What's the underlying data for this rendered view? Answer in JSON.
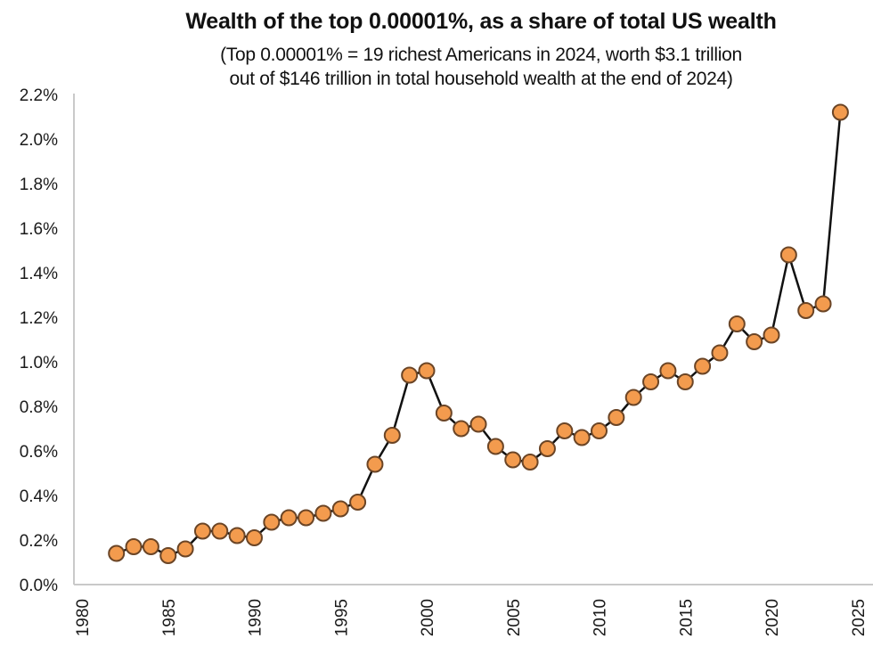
{
  "chart_data": {
    "type": "line",
    "title": "Wealth of the top 0.00001%, as a share of total US wealth",
    "subtitle": [
      "(Top 0.00001% = 19 richest Americans in 2024, worth $3.1 trillion",
      "out of $146 trillion in total household wealth at the end of 2024)"
    ],
    "xlabel": "",
    "ylabel": "",
    "xlim": [
      1980,
      2025
    ],
    "ylim": [
      0.0,
      2.2
    ],
    "x_ticks": [
      1980,
      1985,
      1990,
      1995,
      2000,
      2005,
      2010,
      2015,
      2020,
      2025
    ],
    "x_tick_labels": [
      "1980",
      "1985",
      "1990",
      "1995",
      "2000",
      "2005",
      "2010",
      "2015",
      "2020",
      "2025"
    ],
    "y_ticks": [
      0.0,
      0.2,
      0.4,
      0.6,
      0.8,
      1.0,
      1.2,
      1.4,
      1.6,
      1.8,
      2.0,
      2.2
    ],
    "y_tick_labels": [
      "0.0%",
      "0.2%",
      "0.4%",
      "0.6%",
      "0.8%",
      "1.0%",
      "1.2%",
      "1.4%",
      "1.6%",
      "1.8%",
      "2.0%",
      "2.2%"
    ],
    "grid": false,
    "legend": "none",
    "series": [
      {
        "name": "Top 0.00001% wealth share (%)",
        "line_color": "#111111",
        "marker_fill": "#F39B4E",
        "marker_edge": "#6B4526",
        "x": [
          1982,
          1983,
          1984,
          1985,
          1986,
          1987,
          1988,
          1989,
          1990,
          1991,
          1992,
          1993,
          1994,
          1995,
          1996,
          1997,
          1998,
          1999,
          2000,
          2001,
          2002,
          2003,
          2004,
          2005,
          2006,
          2007,
          2008,
          2009,
          2010,
          2011,
          2012,
          2013,
          2014,
          2015,
          2016,
          2017,
          2018,
          2019,
          2020,
          2021,
          2022,
          2023,
          2024
        ],
        "values": [
          0.14,
          0.17,
          0.17,
          0.13,
          0.16,
          0.24,
          0.24,
          0.22,
          0.21,
          0.28,
          0.3,
          0.3,
          0.32,
          0.34,
          0.37,
          0.54,
          0.67,
          0.94,
          0.96,
          0.77,
          0.7,
          0.72,
          0.62,
          0.56,
          0.55,
          0.61,
          0.69,
          0.66,
          0.69,
          0.75,
          0.84,
          0.91,
          0.96,
          0.91,
          0.98,
          1.04,
          1.17,
          1.09,
          1.12,
          1.48,
          1.23,
          1.26,
          2.12
        ]
      }
    ]
  },
  "colors": {
    "axis": "#C9C9C9",
    "text": "#111111"
  }
}
